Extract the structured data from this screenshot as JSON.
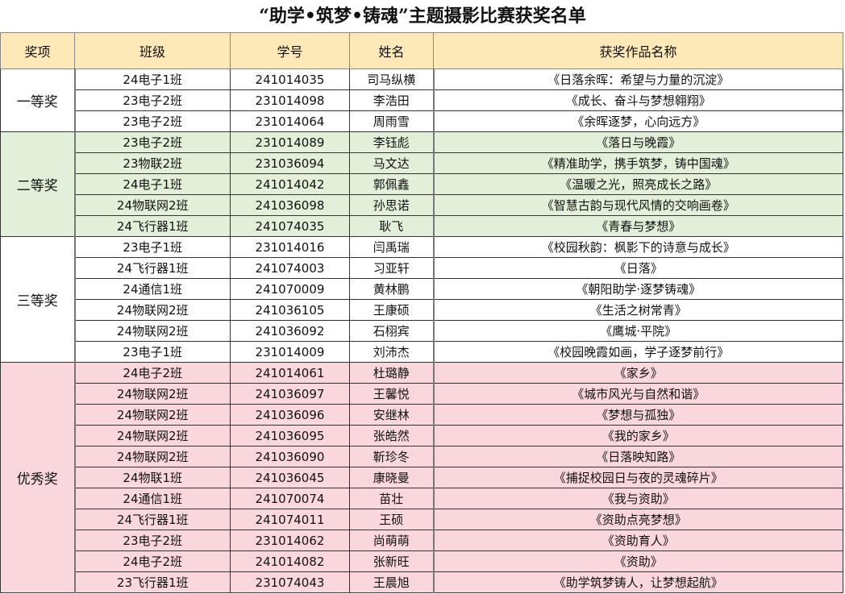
{
  "title": "“助学•筑梦•铸魂”主题摄影比赛获奖名单",
  "headers": [
    "奖项",
    "班级",
    "学号",
    "姓名",
    "获奖作品名称"
  ],
  "groups": [
    {
      "award": "一等奖",
      "color": "#ffffff",
      "rows": [
        [
          "24电子1班",
          "241014035",
          "司马纵横",
          "《日落余晖：希望与力量的沉淀》"
        ],
        [
          "23电子2班",
          "231014098",
          "李浩田",
          "《成长、奋斗与梦想翱翔》"
        ],
        [
          "23电子2班",
          "231014064",
          "周雨雪",
          "《余晖逐梦，心向远方》"
        ]
      ]
    },
    {
      "award": "二等奖",
      "color": "#e2efd9",
      "rows": [
        [
          "23电子2班",
          "231014089",
          "李钰彪",
          "《落日与晚霞》"
        ],
        [
          "23物联2班",
          "231036094",
          "马文达",
          "《精准助学，携手筑梦，铸中国魂》"
        ],
        [
          "24电子1班",
          "241014042",
          "郭佩鑫",
          "《温暖之光，照亮成长之路》"
        ],
        [
          "24物联网2班",
          "241036098",
          "孙思诺",
          "《智慧古韵与现代风情的交响画卷》"
        ],
        [
          "24飞行器1班",
          "241074035",
          "耿飞",
          "《青春与梦想》"
        ]
      ]
    },
    {
      "award": "三等奖",
      "color": "#ffffff",
      "rows": [
        [
          "23电子1班",
          "231014016",
          "闫禹瑞",
          "《校园秋韵：枫影下的诗意与成长》"
        ],
        [
          "24飞行器1班",
          "241074003",
          "习亚轩",
          "《日落》"
        ],
        [
          "24通信1班",
          "241070009",
          "黄林鹏",
          "《朝阳助学·逐梦铸魂》"
        ],
        [
          "24物联网2班",
          "241036105",
          "王康硕",
          "《生活之树常青》"
        ],
        [
          "24物联网2班",
          "241036092",
          "石栩宾",
          "《鹰城·平院》"
        ],
        [
          "23电子1班",
          "231014009",
          "刘沛杰",
          "《校园晚霞如画，学子逐梦前行》"
        ]
      ]
    },
    {
      "award": "优秀奖",
      "color": "#f9d7dd",
      "rows": [
        [
          "24电子2班",
          "241014061",
          "杜璐静",
          "《家乡》"
        ],
        [
          "24物联网2班",
          "241036097",
          "王馨悦",
          "《城市风光与自然和谐》"
        ],
        [
          "24物联网2班",
          "241036096",
          "安继林",
          "《梦想与孤独》"
        ],
        [
          "24物联网2班",
          "241036095",
          "张皓然",
          "《我的家乡》"
        ],
        [
          "24物联网2班",
          "241036090",
          "靳珍冬",
          "《日落映知路》"
        ],
        [
          "24物联1班",
          "241036045",
          "康晓曼",
          "《捕捉校园日与夜的灵魂碎片》"
        ],
        [
          "24通信1班",
          "241070074",
          "苗壮",
          "《我与资助》"
        ],
        [
          "24飞行器1班",
          "241074011",
          "王硕",
          "《资助点亮梦想》"
        ],
        [
          "23电子2班",
          "231014062",
          "尚萌萌",
          "《资助育人》"
        ],
        [
          "24电子2班",
          "241014082",
          "张新旺",
          "《资助》"
        ],
        [
          "23飞行器1班",
          "231074043",
          "王晨旭",
          "《助学筑梦铸人，让梦想起航》"
        ]
      ]
    }
  ]
}
